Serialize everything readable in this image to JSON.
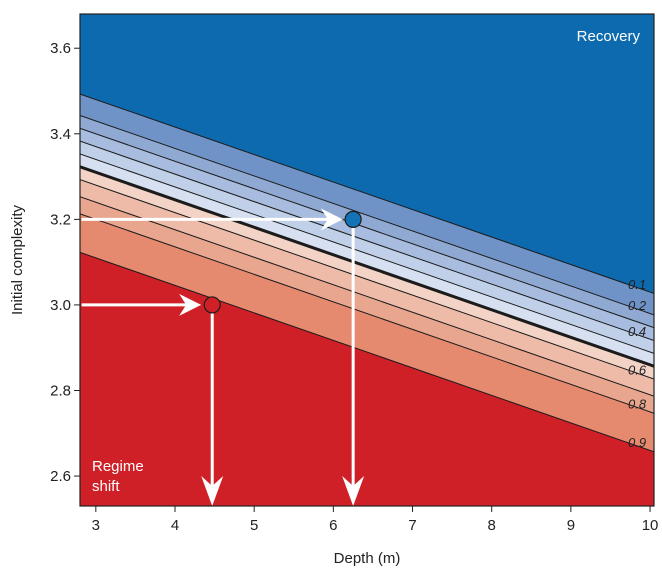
{
  "chart_data": {
    "type": "contour",
    "xlabel": "Depth (m)",
    "ylabel": "Initial complexity",
    "xlim": [
      2.8,
      10.05
    ],
    "ylim": [
      2.53,
      3.68
    ],
    "xticks": [
      3,
      4,
      5,
      6,
      7,
      8,
      9,
      10
    ],
    "yticks": [
      2.6,
      2.8,
      3.0,
      3.2,
      3.4,
      3.6
    ],
    "xtick_labels": [
      "3",
      "4",
      "5",
      "6",
      "7",
      "8",
      "9",
      "10"
    ],
    "ytick_labels": [
      "2.6",
      "2.8",
      "3.0",
      "3.2",
      "3.4",
      "3.6"
    ],
    "regions": [
      {
        "name": "Recovery",
        "color": "#0d6aae"
      },
      {
        "name": "Regime\nshift",
        "color": "#cf2027"
      }
    ],
    "contours": [
      {
        "level": 0.1,
        "label": "0.1",
        "y_at_x3": 3.48,
        "y_at_x10": 3.03
      },
      {
        "level": 0.2,
        "label": "0.2",
        "y_at_x3": 3.43,
        "y_at_x10": 2.98
      },
      {
        "level": 0.3,
        "label": "",
        "y_at_x3": 3.4,
        "y_at_x10": 2.95
      },
      {
        "level": 0.4,
        "label": "0.4",
        "y_at_x3": 3.37,
        "y_at_x10": 2.92
      },
      {
        "level": 0.45,
        "label": "",
        "y_at_x3": 3.34,
        "y_at_x10": 2.89
      },
      {
        "level": 0.5,
        "label": "",
        "y_at_x3": 3.31,
        "y_at_x10": 2.86,
        "bold": true
      },
      {
        "level": 0.6,
        "label": "0.6",
        "y_at_x3": 3.28,
        "y_at_x10": 2.83
      },
      {
        "level": 0.7,
        "label": "",
        "y_at_x3": 3.24,
        "y_at_x10": 2.79
      },
      {
        "level": 0.8,
        "label": "0.8",
        "y_at_x3": 3.2,
        "y_at_x10": 2.75
      },
      {
        "level": 0.9,
        "label": "0.9",
        "y_at_x3": 3.11,
        "y_at_x10": 2.66
      }
    ],
    "band_colors": [
      "#6f93c6",
      "#8fa9d2",
      "#a7bcde",
      "#c0d0e8",
      "#d6e0f0",
      "#f4d3c7",
      "#eebba8",
      "#e9a68f",
      "#e58a6f",
      "#dc7c61"
    ],
    "points": [
      {
        "name": "recovery-point",
        "x": 6.25,
        "y": 3.2,
        "color": "#1473b6"
      },
      {
        "name": "regime-shift-point",
        "x": 4.47,
        "y": 3.0,
        "color": "#cf2027"
      }
    ],
    "arrows": [
      {
        "from": [
          2.82,
          3.2
        ],
        "to": [
          6.12,
          3.2
        ]
      },
      {
        "from": [
          2.82,
          3.0
        ],
        "to": [
          4.33,
          3.0
        ]
      },
      {
        "from": [
          6.25,
          3.18
        ],
        "to": [
          6.25,
          2.53
        ]
      },
      {
        "from": [
          4.47,
          2.98
        ],
        "to": [
          4.47,
          2.53
        ]
      }
    ]
  }
}
